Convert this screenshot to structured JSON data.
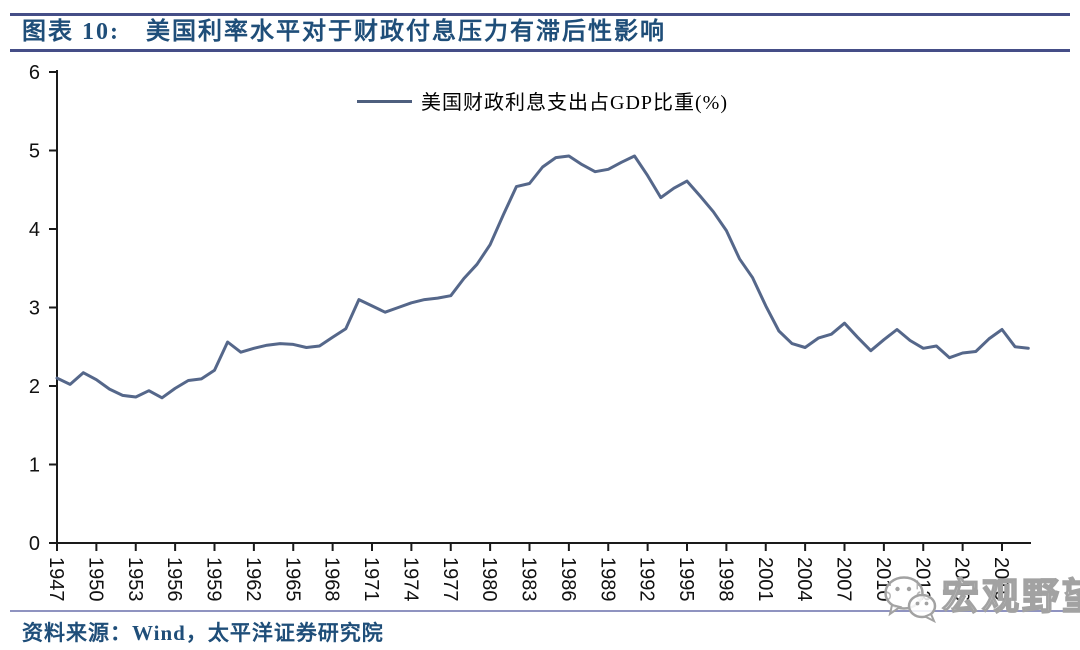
{
  "header": {
    "title": "图表 10:　美国利率水平对于财政付息压力有滞后性影响"
  },
  "footer": {
    "source_label": "资料来源：Wind，太平洋证券研究院"
  },
  "watermark": {
    "icon": "wechat-icon",
    "text": "宏观野望"
  },
  "colors": {
    "line": "#55678a",
    "legend_swatch": "#4e5f7e",
    "axis": "#1a1a1a",
    "title_text": "#1f4e79",
    "header_rule": "#454e87",
    "footer_rule": "#8f93c0",
    "watermark_grey": "#a2a2a2"
  },
  "chart_data": {
    "type": "line",
    "title": "",
    "xlabel": "",
    "ylabel": "",
    "ylim": [
      0,
      6
    ],
    "yticks": [
      0,
      1,
      2,
      3,
      4,
      5,
      6
    ],
    "xticks": [
      1947,
      1950,
      1953,
      1956,
      1959,
      1962,
      1965,
      1968,
      1971,
      1974,
      1977,
      1980,
      1983,
      1986,
      1989,
      1992,
      1995,
      1998,
      2001,
      2004,
      2007,
      2010,
      2013,
      2016,
      2019
    ],
    "xtick_label_rotation_deg": 90,
    "grid": false,
    "legend_position": "top-center",
    "x": [
      1947,
      1948,
      1949,
      1950,
      1951,
      1952,
      1953,
      1954,
      1955,
      1956,
      1957,
      1958,
      1959,
      1960,
      1961,
      1962,
      1963,
      1964,
      1965,
      1966,
      1967,
      1968,
      1969,
      1970,
      1971,
      1972,
      1973,
      1974,
      1975,
      1976,
      1977,
      1978,
      1979,
      1980,
      1981,
      1982,
      1983,
      1984,
      1985,
      1986,
      1987,
      1988,
      1989,
      1990,
      1991,
      1992,
      1993,
      1994,
      1995,
      1996,
      1997,
      1998,
      1999,
      2000,
      2001,
      2002,
      2003,
      2004,
      2005,
      2006,
      2007,
      2008,
      2009,
      2010,
      2011,
      2012,
      2013,
      2014,
      2015,
      2016,
      2017,
      2018,
      2019,
      2020,
      2021
    ],
    "series": [
      {
        "name": "美国财政利息支出占GDP比重(%)",
        "color": "#55678a",
        "values": [
          2.1,
          2.02,
          2.17,
          2.08,
          1.96,
          1.88,
          1.86,
          1.94,
          1.85,
          1.97,
          2.07,
          2.09,
          2.2,
          2.56,
          2.43,
          2.48,
          2.52,
          2.54,
          2.53,
          2.49,
          2.51,
          2.62,
          2.73,
          3.1,
          3.02,
          2.94,
          3.0,
          3.06,
          3.1,
          3.12,
          3.15,
          3.37,
          3.55,
          3.8,
          4.18,
          4.54,
          4.58,
          4.79,
          4.91,
          4.93,
          4.82,
          4.73,
          4.76,
          4.85,
          4.93,
          4.68,
          4.4,
          4.52,
          4.61,
          4.42,
          4.22,
          3.98,
          3.62,
          3.38,
          3.02,
          2.7,
          2.54,
          2.49,
          2.61,
          2.66,
          2.8,
          2.62,
          2.45,
          2.59,
          2.72,
          2.58,
          2.48,
          2.51,
          2.36,
          2.42,
          2.44,
          2.6,
          2.72,
          2.5,
          2.48
        ]
      }
    ]
  }
}
